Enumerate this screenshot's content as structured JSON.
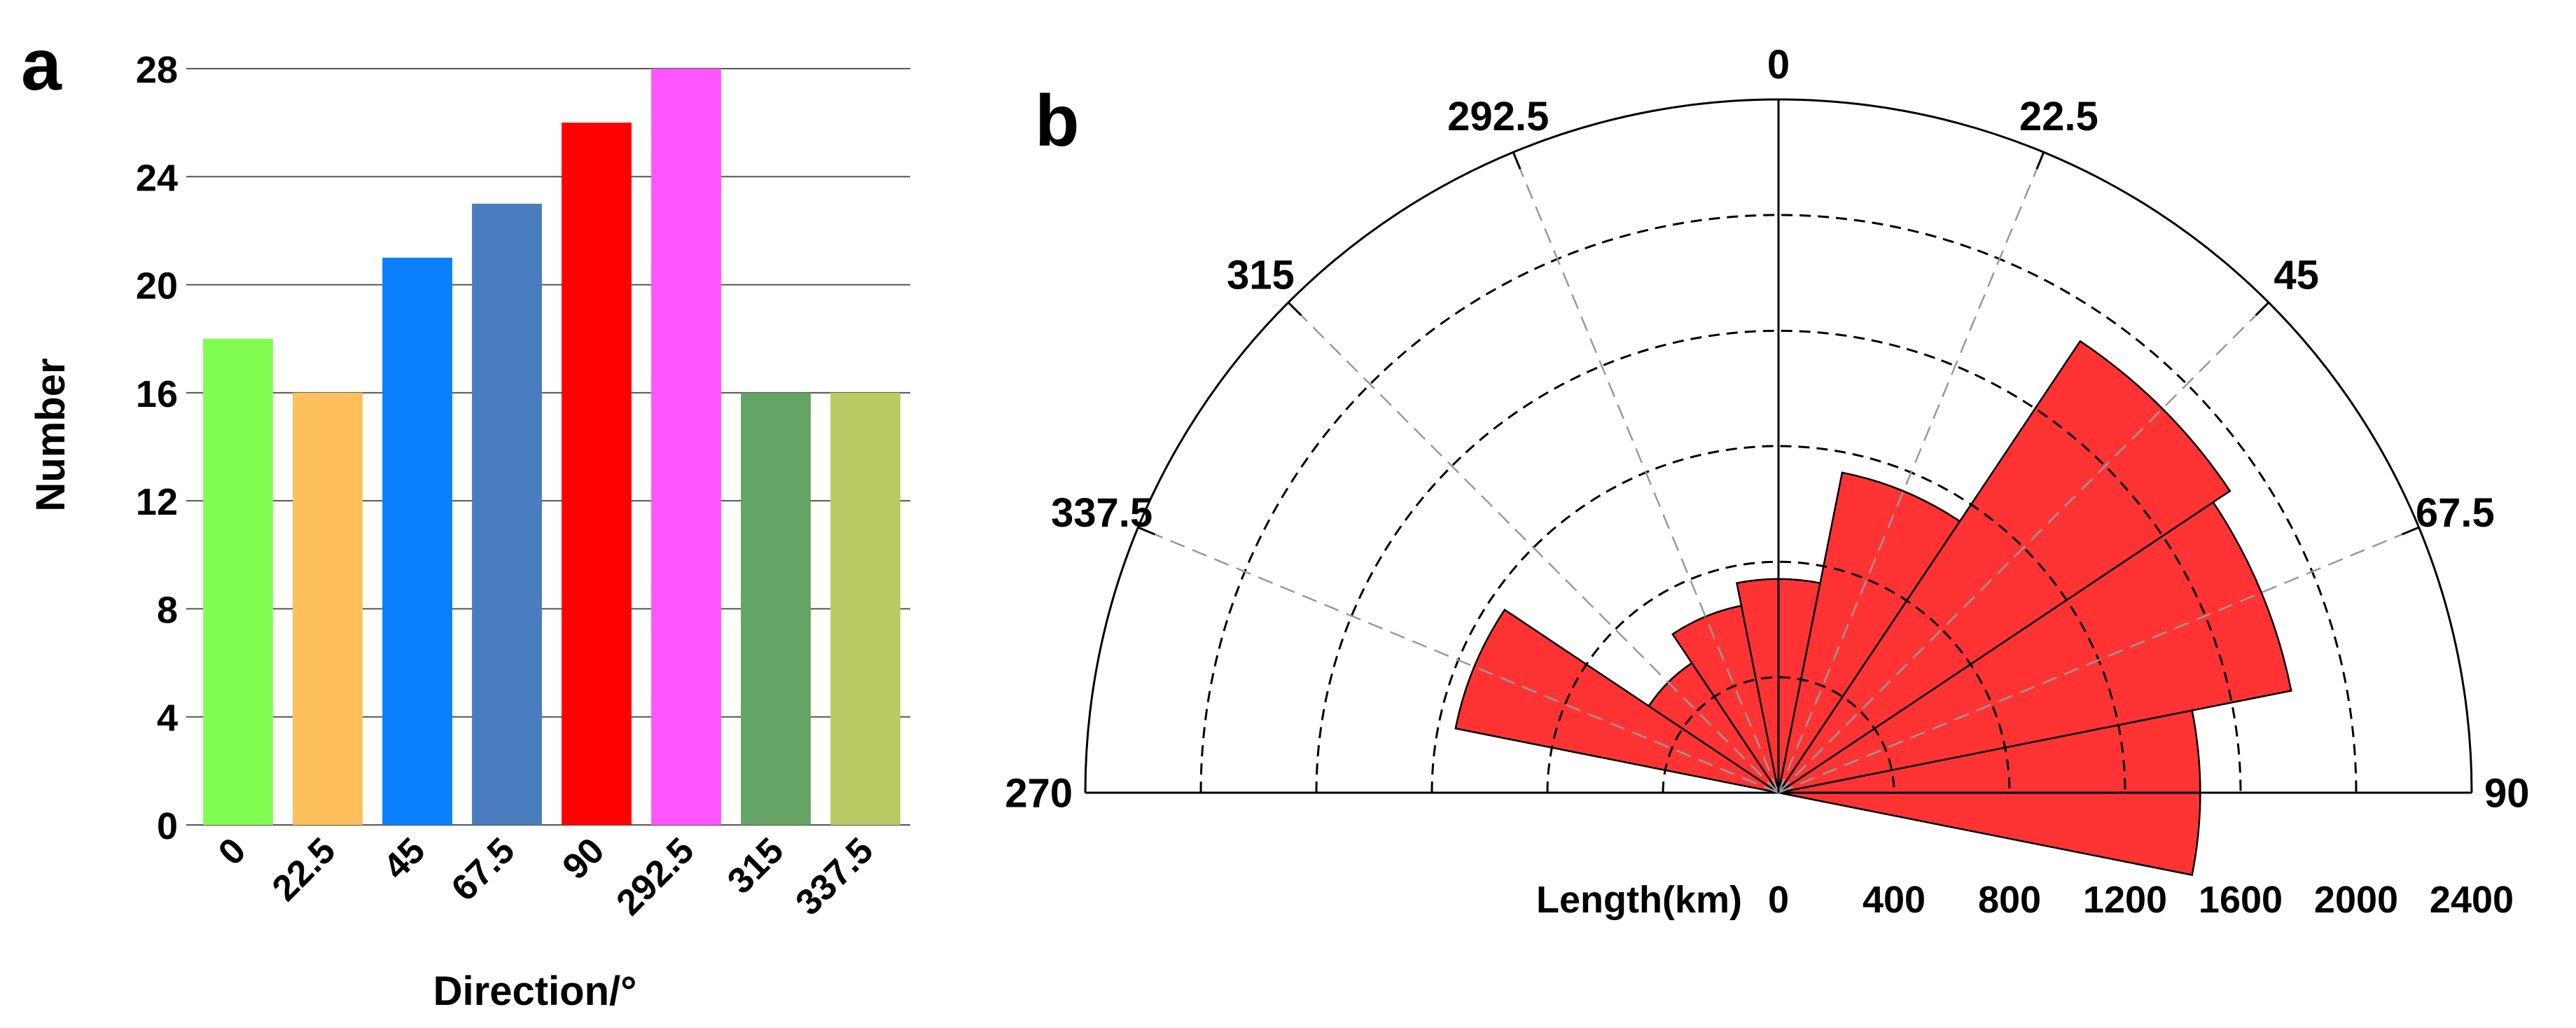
{
  "panels": [
    {
      "letter": "a"
    },
    {
      "letter": "b"
    }
  ],
  "chart_data": [
    {
      "type": "bar",
      "xlabel": "Direction/°",
      "ylabel": "Number",
      "categories": [
        "0",
        "22.5",
        "45",
        "67.5",
        "90",
        "292.5",
        "315",
        "337.5"
      ],
      "values": [
        18,
        16,
        21,
        23,
        26,
        28,
        16,
        16
      ],
      "colors": [
        "#80FF50",
        "#FFBF5A",
        "#0A7FFF",
        "#4A7DBF",
        "#FF0000",
        "#FF55FF",
        "#64A464",
        "#BACB64"
      ],
      "ylim": [
        0,
        28
      ],
      "yticks": [
        0,
        4,
        8,
        12,
        16,
        20,
        24,
        28
      ],
      "grid": true
    },
    {
      "type": "rose",
      "radial_label": "Length(km)",
      "rlim": [
        0,
        2400
      ],
      "rticks": [
        0,
        400,
        800,
        1200,
        1600,
        2000,
        2400
      ],
      "angle_ticks": [
        "0",
        "22.5",
        "45",
        "67.5",
        "90",
        "292.5",
        "315",
        "337.5",
        "270"
      ],
      "angles": [
        -90,
        -67.5,
        -45,
        -22.5,
        0,
        22.5,
        45,
        67.5,
        90
      ],
      "sector_width": 22.5,
      "color": "#FF3333",
      "sectors": [
        {
          "direction": 0,
          "length": 740
        },
        {
          "direction": 22.5,
          "length": 1130
        },
        {
          "direction": 45,
          "length": 1880
        },
        {
          "direction": 67.5,
          "length": 1810
        },
        {
          "direction": 90,
          "length": 1460
        },
        {
          "direction": 292.5,
          "length": 1140
        },
        {
          "direction": 315,
          "length": 540
        },
        {
          "direction": 337.5,
          "length": 660
        }
      ]
    }
  ]
}
